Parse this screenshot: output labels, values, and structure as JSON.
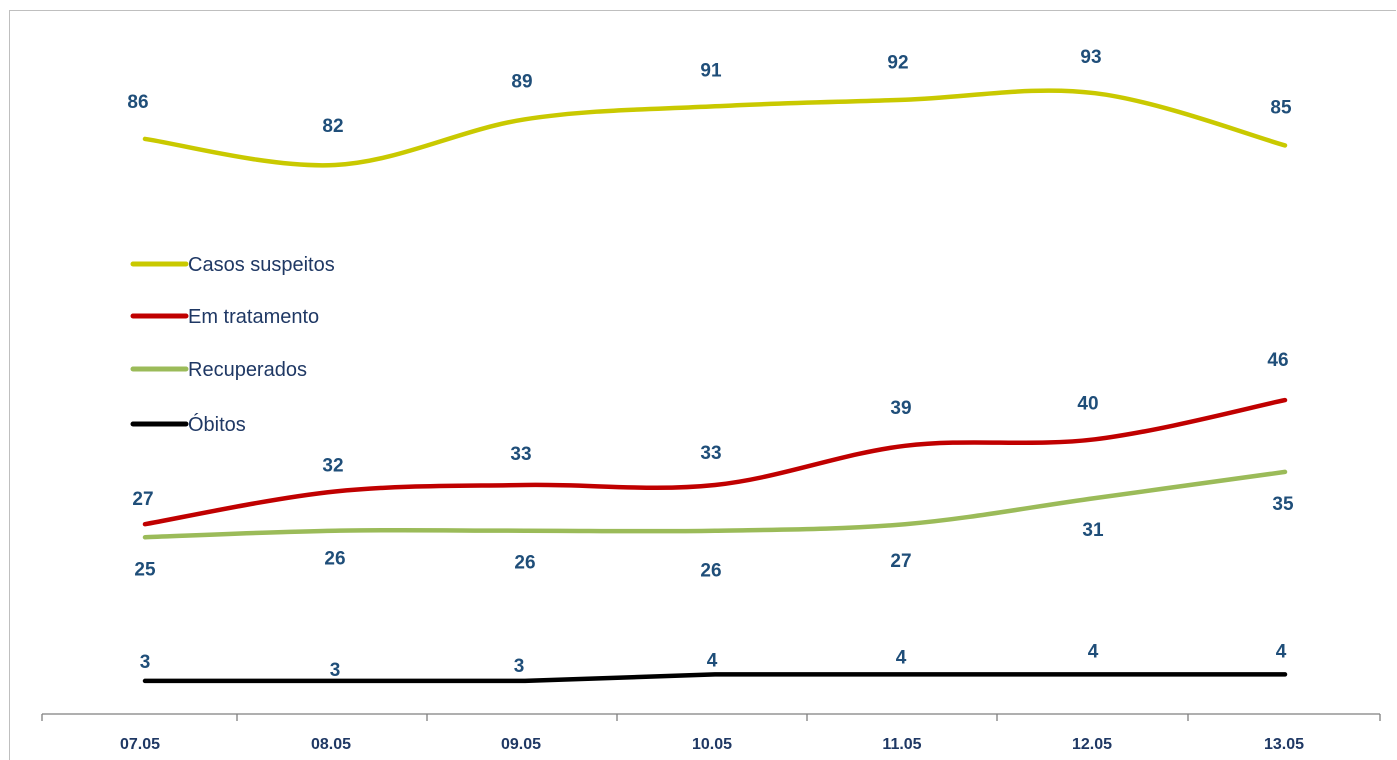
{
  "chart_data": {
    "type": "line",
    "categories": [
      "07.05",
      "08.05",
      "09.05",
      "10.05",
      "11.05",
      "12.05",
      "13.05"
    ],
    "series": [
      {
        "name": "Casos suspeitos",
        "values": [
          86,
          82,
          89,
          91,
          92,
          93,
          85
        ],
        "color": "#c9c900"
      },
      {
        "name": "Em tratamento",
        "values": [
          27,
          32,
          33,
          33,
          39,
          40,
          46
        ],
        "color": "#c00000"
      },
      {
        "name": "Recuperados",
        "values": [
          25,
          26,
          26,
          26,
          27,
          31,
          35
        ],
        "color": "#9bbb59"
      },
      {
        "name": "Óbitos",
        "values": [
          3,
          3,
          3,
          4,
          4,
          4,
          4
        ],
        "color": "#000000"
      }
    ],
    "label_color": "#1f4e79",
    "axis_color": "#7f7f7f",
    "ylim": [
      0,
      100
    ],
    "grid": false,
    "legend_position": "left-middle",
    "smooth": true
  }
}
